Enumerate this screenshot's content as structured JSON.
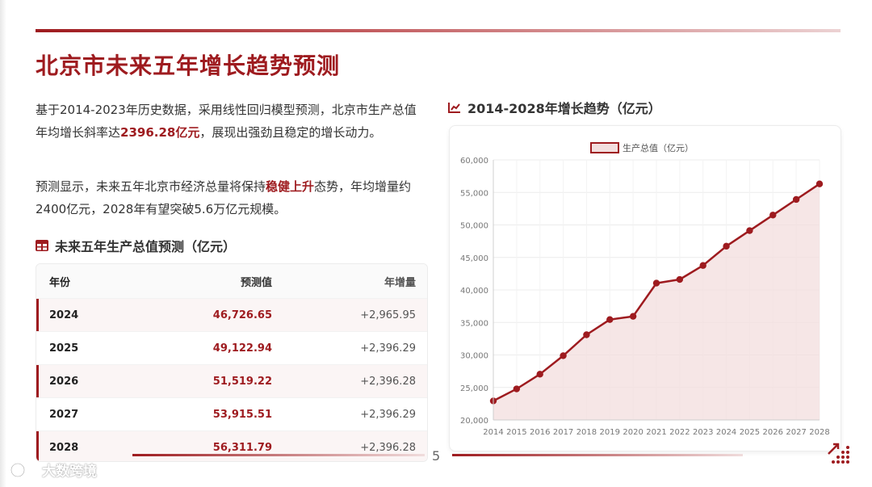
{
  "title": "北京市未来五年增长趋势预测",
  "paragraphs": {
    "p1_a": "基于2014-2023年历史数据，采用线性回归模型预测，北京市生产总值年均增长斜率达",
    "p1_hl": "2396.28亿元",
    "p1_b": "，展现出强劲且稳定的增长动力。",
    "p2_a": "预测显示，未来五年北京市经济总量将保持",
    "p2_hl": "稳健上升",
    "p2_b": "态势，年均增量约2400亿元，2028年有望突破5.6万亿元规模。"
  },
  "table": {
    "title": "未来五年生产总值预测（亿元）",
    "headers": [
      "年份",
      "预测值",
      "年增量"
    ],
    "rows": [
      {
        "year": "2024",
        "value": "46,726.65",
        "increase": "+2,965.95"
      },
      {
        "year": "2025",
        "value": "49,122.94",
        "increase": "+2,396.29"
      },
      {
        "year": "2026",
        "value": "51,519.22",
        "increase": "+2,396.28"
      },
      {
        "year": "2027",
        "value": "53,915.51",
        "increase": "+2,396.29"
      },
      {
        "year": "2028",
        "value": "56,311.79",
        "increase": "+2,396.28"
      }
    ]
  },
  "chart_title": "2014-2028年增长趋势（亿元）",
  "chart_data": {
    "type": "area",
    "title": "2014-2028年增长趋势（亿元）",
    "legend": "生产总值（亿元）",
    "legend_position": "top-center",
    "categories": [
      "2014",
      "2015",
      "2016",
      "2017",
      "2018",
      "2019",
      "2020",
      "2021",
      "2022",
      "2023",
      "2024",
      "2025",
      "2026",
      "2027",
      "2028"
    ],
    "series": [
      {
        "name": "生产总值（亿元）",
        "values": [
          22926,
          24779,
          27041,
          29883,
          33106,
          35445,
          35943,
          41045,
          41611,
          43761,
          46727,
          49123,
          51519,
          53916,
          56312
        ]
      }
    ],
    "ylim": [
      20000,
      60000
    ],
    "yticks": [
      "20,000",
      "25,000",
      "30,000",
      "35,000",
      "40,000",
      "45,000",
      "50,000",
      "55,000",
      "60,000"
    ],
    "grid": true,
    "colors": {
      "line": "#9e1b1f",
      "fill": "#f3dede"
    }
  },
  "page_number": "5",
  "watermark": "大数跨境",
  "colors": {
    "accent": "#9e1b1f"
  }
}
